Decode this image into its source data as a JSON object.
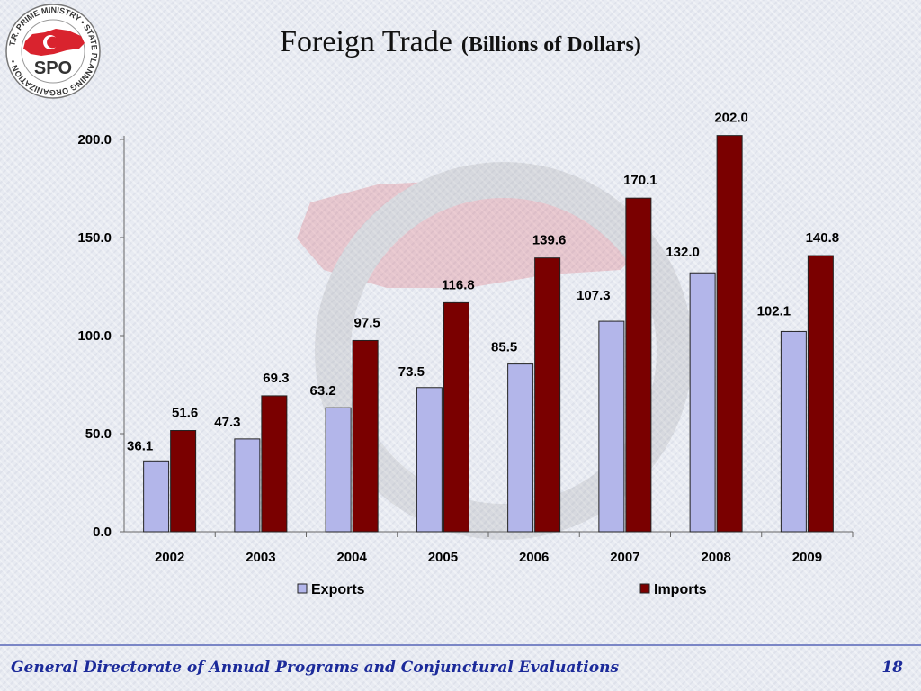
{
  "slide": {
    "logo": {
      "ring_text": "T.R. PRIME MINISTRY • STATE PLANNING ORGANIZATION •",
      "abbreviation": "SPO",
      "flag_color": "#d9232e"
    },
    "footer": {
      "text": "General Directorate of Annual Programs and Conjunctural Evaluations",
      "page_number": "18"
    },
    "colors": {
      "footer_text": "#1b2a9a",
      "footer_line": "#7a86c6"
    }
  },
  "chart_data": {
    "type": "bar",
    "title": "Foreign Trade",
    "subtitle": "(Billions of Dollars)",
    "categories": [
      "2002",
      "2003",
      "2004",
      "2005",
      "2006",
      "2007",
      "2008",
      "2009"
    ],
    "series": [
      {
        "name": "Exports",
        "color": "#b3b6ea",
        "values": [
          36.1,
          47.3,
          63.2,
          73.5,
          85.5,
          107.3,
          132.0,
          102.1
        ]
      },
      {
        "name": "Imports",
        "color": "#7a0000",
        "values": [
          51.6,
          69.3,
          97.5,
          116.8,
          139.6,
          170.1,
          202.0,
          140.8
        ]
      }
    ],
    "data_labels": {
      "Exports": [
        "36.1",
        "47.3",
        "63.2",
        "73.5",
        "85.5",
        "107.3",
        "132.0",
        "102.1"
      ],
      "Imports": [
        "51.6",
        "69.3",
        "97.5",
        "116.8",
        "139.6",
        "170.1",
        "202.0",
        "140.8"
      ]
    },
    "yticks": [
      "0.0",
      "50.0",
      "100.0",
      "150.0",
      "200.0"
    ],
    "ylim": [
      0,
      200
    ],
    "xlabel": "",
    "ylabel": "",
    "grid": false,
    "legend": "bottom"
  }
}
